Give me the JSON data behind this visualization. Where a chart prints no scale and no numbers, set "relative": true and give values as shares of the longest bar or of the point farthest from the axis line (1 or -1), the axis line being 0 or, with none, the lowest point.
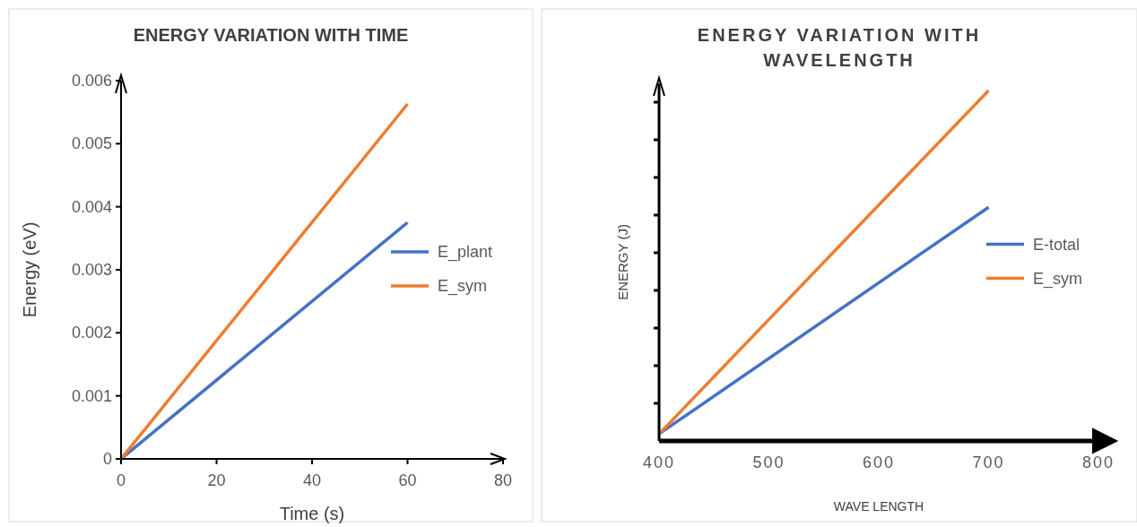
{
  "chart_data": [
    {
      "type": "line",
      "title": "ENERGY VARIATION WITH TIME",
      "xlabel": "Time (s)",
      "ylabel": "Energy (eV)",
      "xlim": [
        0,
        80
      ],
      "xticks": [
        0,
        20,
        40,
        60,
        80
      ],
      "ylim": [
        0,
        0.006
      ],
      "yticks": [
        0,
        0.001,
        0.002,
        0.003,
        0.004,
        0.005,
        0.006
      ],
      "legend": "right",
      "x": [
        0,
        60
      ],
      "series": [
        {
          "name": "E_plant",
          "color": "#4472c4",
          "values": [
            0,
            0.00375
          ]
        },
        {
          "name": "E_sym",
          "color": "#ed7d31",
          "values": [
            0,
            0.00563
          ]
        }
      ]
    },
    {
      "type": "line",
      "title": "ENERGY VARIATION WITH WAVELENGTH",
      "xlabel": "WAVE LENGTH",
      "ylabel": "ENERGY (J)",
      "relative": true,
      "xlim": [
        400,
        800
      ],
      "xticks": [
        400,
        500,
        600,
        700,
        800
      ],
      "legend": "right",
      "x": [
        400,
        700
      ],
      "series": [
        {
          "name": "E-total",
          "color": "#4472c4",
          "values": [
            0.02,
            0.667
          ]
        },
        {
          "name": "E_sym",
          "color": "#ed7d31",
          "values": [
            0.02,
            1
          ]
        }
      ]
    }
  ]
}
